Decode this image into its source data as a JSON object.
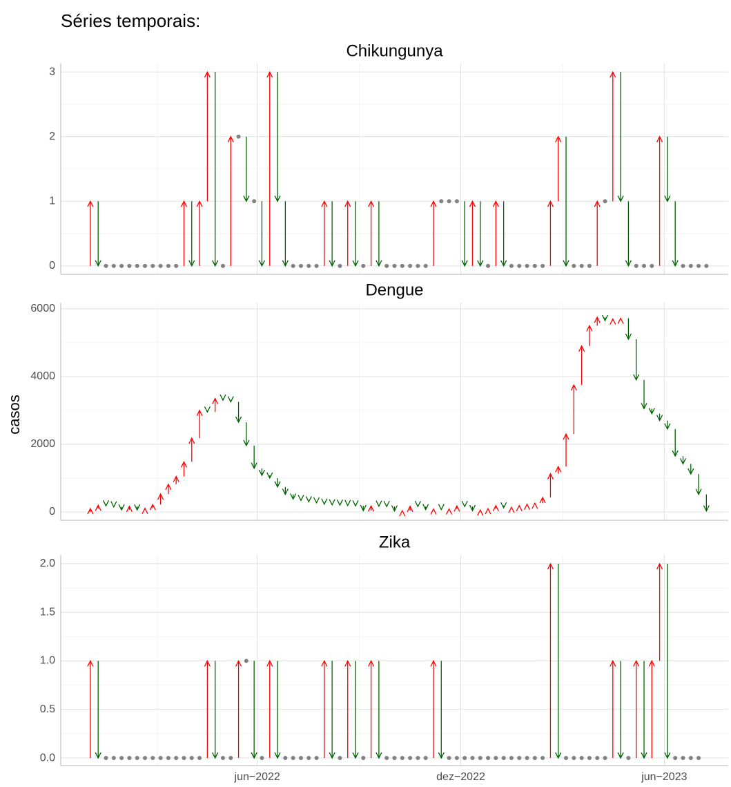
{
  "title": "Séries temporais:",
  "ylabel": "casos",
  "chart_data": [
    {
      "type": "arrow",
      "title": "Chikungunya",
      "x": [
        0,
        1,
        2,
        3,
        4,
        5,
        6,
        7,
        8,
        9,
        10,
        11,
        12,
        13,
        14,
        15,
        16,
        17,
        18,
        19,
        20,
        21,
        22,
        23,
        24,
        25,
        26,
        27,
        28,
        29,
        30,
        31,
        32,
        33,
        34,
        35,
        36,
        37,
        38,
        39,
        40,
        41,
        42,
        43,
        44,
        45,
        46,
        47,
        48,
        49,
        50,
        51,
        52,
        53,
        54,
        55,
        56,
        57,
        58,
        59,
        60,
        61,
        62,
        63,
        64,
        65,
        66,
        67,
        68,
        69,
        70,
        71,
        72,
        73,
        74,
        75,
        76,
        77,
        78,
        79
      ],
      "values": [
        1,
        0,
        0,
        0,
        0,
        0,
        0,
        0,
        0,
        0,
        0,
        0,
        1,
        0,
        1,
        3,
        0,
        0,
        2,
        2,
        1,
        1,
        0,
        3,
        1,
        0,
        0,
        0,
        0,
        0,
        1,
        0,
        0,
        1,
        0,
        0,
        1,
        0,
        0,
        0,
        0,
        0,
        0,
        0,
        1,
        1,
        1,
        1,
        0,
        1,
        0,
        0,
        1,
        0,
        0,
        0,
        0,
        0,
        0,
        1,
        2,
        0,
        0,
        0,
        0,
        1,
        1,
        3,
        1,
        0,
        0,
        0,
        0,
        2,
        1,
        0,
        0,
        0,
        0,
        0
      ],
      "xlim": [
        -3.8,
        81.8
      ],
      "xticks": [
        21.4,
        47.5,
        73.6
      ],
      "xminor": [
        8.6,
        34.5,
        60.6
      ],
      "ylim": [
        -0.13,
        3.13
      ],
      "yticks": [
        0,
        1,
        2,
        3
      ],
      "yminor": [
        0.5,
        1.5,
        2.5
      ],
      "grid": true,
      "up_color": "#ff0000",
      "down_color": "#006400",
      "same_color": "#808080"
    },
    {
      "type": "arrow",
      "title": "Dengue",
      "x": [
        0,
        1,
        2,
        3,
        4,
        5,
        6,
        7,
        8,
        9,
        10,
        11,
        12,
        13,
        14,
        15,
        16,
        17,
        18,
        19,
        20,
        21,
        22,
        23,
        24,
        25,
        26,
        27,
        28,
        29,
        30,
        31,
        32,
        33,
        34,
        35,
        36,
        37,
        38,
        39,
        40,
        41,
        42,
        43,
        44,
        45,
        46,
        47,
        48,
        49,
        50,
        51,
        52,
        53,
        54,
        55,
        56,
        57,
        58,
        59,
        60,
        61,
        62,
        63,
        64,
        65,
        66,
        67,
        68,
        69,
        70,
        71,
        72,
        73,
        74,
        75,
        76,
        77,
        78,
        79
      ],
      "values": [
        100,
        200,
        180,
        150,
        60,
        170,
        60,
        110,
        220,
        530,
        820,
        1050,
        1480,
        2180,
        3000,
        2950,
        3350,
        3300,
        3250,
        2650,
        1960,
        1290,
        1080,
        1000,
        740,
        520,
        380,
        340,
        300,
        270,
        230,
        210,
        200,
        190,
        180,
        40,
        180,
        170,
        160,
        30,
        40,
        170,
        160,
        70,
        90,
        70,
        90,
        180,
        160,
        40,
        60,
        100,
        190,
        120,
        140,
        190,
        230,
        260,
        430,
        1130,
        1340,
        2300,
        3750,
        4900,
        5500,
        5750,
        5650,
        5700,
        5720,
        5100,
        3900,
        3050,
        2900,
        2700,
        2450,
        1650,
        1420,
        1120,
        520,
        30
      ],
      "xlim": [
        -3.8,
        81.8
      ],
      "xticks": [
        21.4,
        47.5,
        73.6
      ],
      "xminor": [
        8.6,
        34.5,
        60.6
      ],
      "ylim": [
        -245,
        6180
      ],
      "yticks": [
        0,
        2000,
        4000,
        6000
      ],
      "yminor": [
        1000,
        3000,
        5000
      ],
      "grid": true,
      "up_color": "#ff0000",
      "down_color": "#006400",
      "same_color": "#808080"
    },
    {
      "type": "arrow",
      "title": "Zika",
      "x": [
        0,
        1,
        2,
        3,
        4,
        5,
        6,
        7,
        8,
        9,
        10,
        11,
        12,
        13,
        14,
        15,
        16,
        17,
        18,
        19,
        20,
        21,
        22,
        23,
        24,
        25,
        26,
        27,
        28,
        29,
        30,
        31,
        32,
        33,
        34,
        35,
        36,
        37,
        38,
        39,
        40,
        41,
        42,
        43,
        44,
        45,
        46,
        47,
        48,
        49,
        50,
        51,
        52,
        53,
        54,
        55,
        56,
        57,
        58,
        59,
        60,
        61,
        62,
        63,
        64,
        65,
        66,
        67,
        68,
        69,
        70,
        71,
        72,
        73,
        74,
        75,
        76,
        77,
        78,
        79
      ],
      "values": [
        1,
        0,
        0,
        0,
        0,
        0,
        0,
        0,
        0,
        0,
        0,
        0,
        0,
        0,
        0,
        1,
        0,
        0,
        0,
        1,
        1,
        0,
        0,
        1,
        0,
        0,
        0,
        0,
        0,
        0,
        1,
        0,
        0,
        1,
        0,
        0,
        1,
        0,
        0,
        0,
        0,
        0,
        0,
        0,
        1,
        0,
        0,
        0,
        0,
        0,
        0,
        0,
        0,
        0,
        0,
        0,
        0,
        0,
        0,
        2,
        0,
        0,
        0,
        0,
        0,
        0,
        0,
        1,
        0,
        0,
        1,
        0,
        1,
        2,
        0,
        0,
        0,
        0,
        0,
        null
      ],
      "xlim": [
        -3.8,
        81.8
      ],
      "xticks": [
        {
          "value": 21.4,
          "label": "jun−2022"
        },
        {
          "value": 47.5,
          "label": "dez−2022"
        },
        {
          "value": 73.6,
          "label": "jun−2023"
        }
      ],
      "xminor": [
        8.6,
        34.5,
        60.6
      ],
      "ylim": [
        -0.078,
        2.092
      ],
      "yticks": [
        {
          "value": 0,
          "label": "0.0"
        },
        0.5,
        {
          "value": 1,
          "label": "1.0"
        },
        1.5,
        {
          "value": 2,
          "label": "2.0"
        }
      ],
      "yminor": [
        0.25,
        0.75,
        1.25,
        1.75
      ],
      "grid": true,
      "up_color": "#ff0000",
      "down_color": "#006400",
      "same_color": "#808080"
    }
  ]
}
